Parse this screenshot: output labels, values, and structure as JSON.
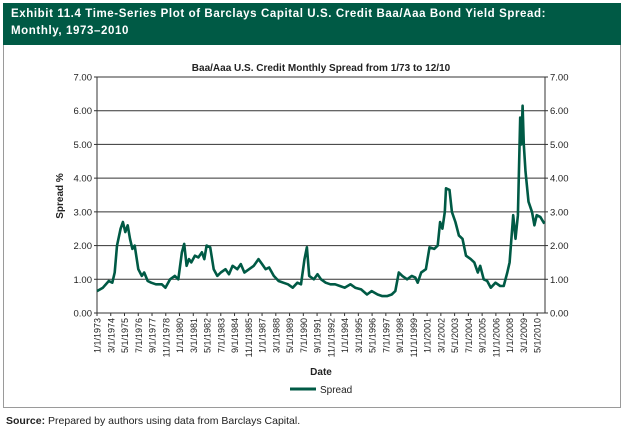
{
  "header": {
    "title_line1": "Exhibit 11.4 Time-Series Plot of Barclays Capital U.S. Credit Baa/Aaa Bond Yield Spread:",
    "title_line2": "Monthly, 1973–2010"
  },
  "source": {
    "label": "Source:",
    "text": "Prepared by authors using data from Barclays Capital."
  },
  "colors": {
    "header_bg": "#005a45",
    "series": "#005a45"
  },
  "chart_data": {
    "type": "line",
    "title": "Baa/Aaa U.S. Credit Monthly Spread from 1/73 to 12/10",
    "xlabel": "Date",
    "ylabel": "Spread %",
    "xlim": [
      1973.0,
      2011.0
    ],
    "ylim": [
      0,
      7
    ],
    "yticks": [
      "0.00",
      "1.00",
      "2.00",
      "3.00",
      "4.00",
      "5.00",
      "6.00",
      "7.00"
    ],
    "xticks": [
      "1/1/1973",
      "3/1/1974",
      "5/1/1975",
      "7/1/1976",
      "9/1/1977",
      "11/1/1978",
      "1/1/1980",
      "3/1/1981",
      "5/1/1982",
      "7/1/1983",
      "9/1/1984",
      "11/1/1985",
      "1/1/1987",
      "3/1/1988",
      "5/1/1989",
      "7/1/1990",
      "9/1/1991",
      "11/1/1992",
      "1/1/1994",
      "3/1/1995",
      "5/1/1996",
      "7/1/1997",
      "9/1/1998",
      "11/1/1999",
      "1/1/2001",
      "3/1/2002",
      "5/1/2003",
      "7/1/2004",
      "9/1/2005",
      "11/1/2006",
      "1/1/2008",
      "3/1/2009",
      "5/1/2010"
    ],
    "grid": true,
    "legend": "bottom",
    "series": [
      {
        "name": "Spread",
        "x": [
          1973.0,
          1973.5,
          1974.0,
          1974.3,
          1974.5,
          1974.7,
          1975.0,
          1975.2,
          1975.4,
          1975.6,
          1975.8,
          1976.0,
          1976.2,
          1976.5,
          1976.8,
          1977.0,
          1977.3,
          1977.6,
          1978.0,
          1978.5,
          1978.8,
          1979.2,
          1979.6,
          1979.9,
          1980.2,
          1980.4,
          1980.6,
          1980.8,
          1981.0,
          1981.3,
          1981.6,
          1981.9,
          1982.1,
          1982.3,
          1982.6,
          1982.9,
          1983.2,
          1983.5,
          1983.9,
          1984.2,
          1984.5,
          1984.9,
          1985.2,
          1985.5,
          1985.9,
          1986.3,
          1986.7,
          1987.0,
          1987.3,
          1987.6,
          1988.0,
          1988.4,
          1988.8,
          1989.2,
          1989.6,
          1990.0,
          1990.3,
          1990.6,
          1990.8,
          1991.0,
          1991.4,
          1991.7,
          1992.0,
          1992.4,
          1992.8,
          1993.2,
          1993.6,
          1994.0,
          1994.5,
          1994.9,
          1995.4,
          1995.9,
          1996.3,
          1996.8,
          1997.2,
          1997.6,
          1998.0,
          1998.3,
          1998.6,
          1998.9,
          1999.3,
          1999.7,
          2000.0,
          2000.2,
          2000.5,
          2000.9,
          2001.2,
          2001.6,
          2001.9,
          2002.1,
          2002.3,
          2002.5,
          2002.6,
          2002.9,
          2003.1,
          2003.4,
          2003.7,
          2004.0,
          2004.3,
          2004.7,
          2005.0,
          2005.3,
          2005.5,
          2005.8,
          2006.1,
          2006.4,
          2006.8,
          2007.2,
          2007.5,
          2007.8,
          2008.0,
          2008.3,
          2008.5,
          2008.7,
          2008.9,
          2009.0,
          2009.1,
          2009.2,
          2009.35,
          2009.6,
          2009.9,
          2010.1,
          2010.3,
          2010.6,
          2010.95
        ],
        "values": [
          0.65,
          0.75,
          0.95,
          0.9,
          1.2,
          2.0,
          2.5,
          2.7,
          2.4,
          2.6,
          2.2,
          1.9,
          2.0,
          1.3,
          1.1,
          1.2,
          0.95,
          0.9,
          0.85,
          0.85,
          0.75,
          1.0,
          1.1,
          1.0,
          1.8,
          2.05,
          1.4,
          1.6,
          1.5,
          1.7,
          1.65,
          1.8,
          1.6,
          2.0,
          1.95,
          1.3,
          1.1,
          1.2,
          1.3,
          1.15,
          1.4,
          1.3,
          1.45,
          1.2,
          1.3,
          1.4,
          1.6,
          1.45,
          1.3,
          1.35,
          1.1,
          0.95,
          0.9,
          0.85,
          0.75,
          0.9,
          0.85,
          1.6,
          1.95,
          1.1,
          1.0,
          1.15,
          1.0,
          0.9,
          0.85,
          0.85,
          0.8,
          0.75,
          0.85,
          0.75,
          0.7,
          0.55,
          0.65,
          0.55,
          0.5,
          0.5,
          0.55,
          0.65,
          1.2,
          1.1,
          1.0,
          1.1,
          1.05,
          0.9,
          1.2,
          1.3,
          1.95,
          1.9,
          2.0,
          2.7,
          2.5,
          3.0,
          3.7,
          3.65,
          3.0,
          2.7,
          2.3,
          2.2,
          1.7,
          1.6,
          1.5,
          1.2,
          1.4,
          1.0,
          0.95,
          0.75,
          0.9,
          0.8,
          0.8,
          1.2,
          1.5,
          2.9,
          2.2,
          2.9,
          5.8,
          5.0,
          6.15,
          5.0,
          4.2,
          3.3,
          3.0,
          2.6,
          2.9,
          2.85,
          2.65
        ]
      }
    ]
  }
}
